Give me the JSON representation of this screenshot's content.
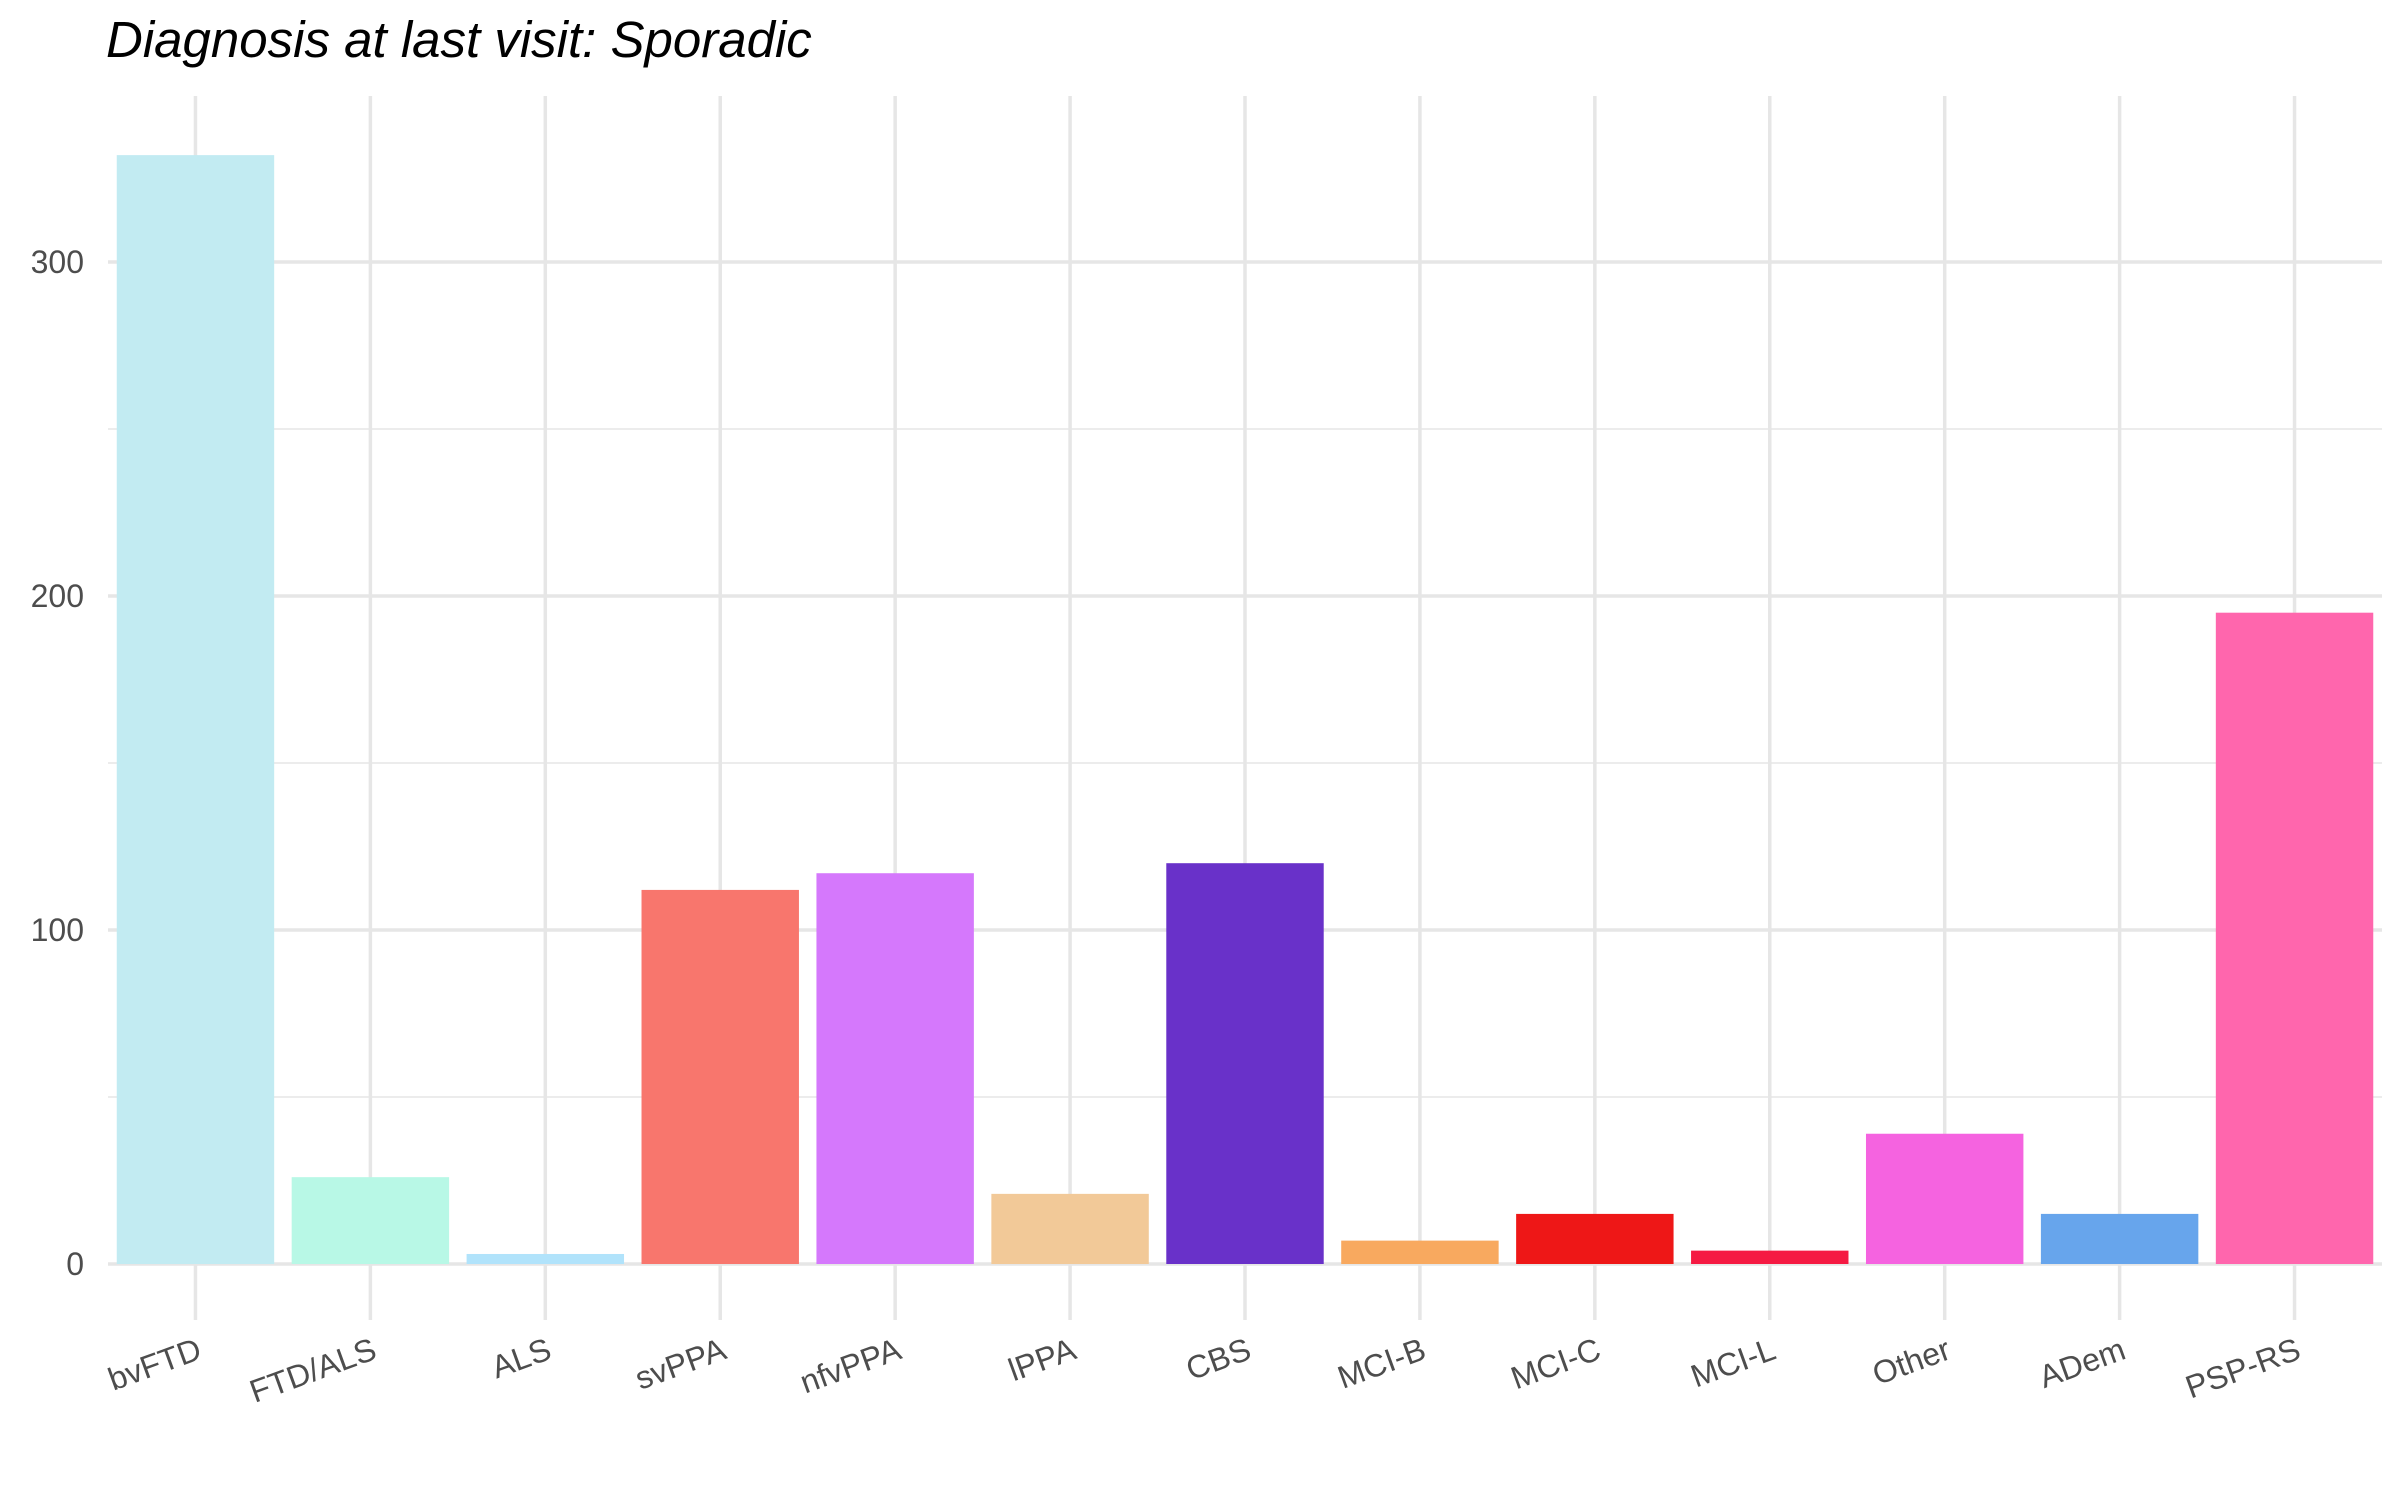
{
  "chart_data": {
    "type": "bar",
    "title": "Diagnosis at last visit: Sporadic",
    "xlabel": "",
    "ylabel": "",
    "categories": [
      "bvFTD",
      "FTD/ALS",
      "ALS",
      "svPPA",
      "nfvPPA",
      "lPPA",
      "CBS",
      "MCI-B",
      "MCI-C",
      "MCI-L",
      "Other",
      "ADem",
      "PSP-RS"
    ],
    "values": [
      332,
      26,
      3,
      112,
      117,
      21,
      120,
      7,
      15,
      4,
      39,
      15,
      195
    ],
    "colors": [
      "#c2ebf2",
      "#b8f8e6",
      "#b1e3fb",
      "#f8766d",
      "#d578fc",
      "#f2c998",
      "#6931c9",
      "#f8a95f",
      "#ee1717",
      "#f51a43",
      "#f563e0",
      "#67a5ec",
      "#ff66ad"
    ],
    "ylim": [
      0,
      350
    ],
    "yticks": [
      0,
      100,
      200,
      300
    ],
    "grid": true,
    "legend": "none"
  }
}
